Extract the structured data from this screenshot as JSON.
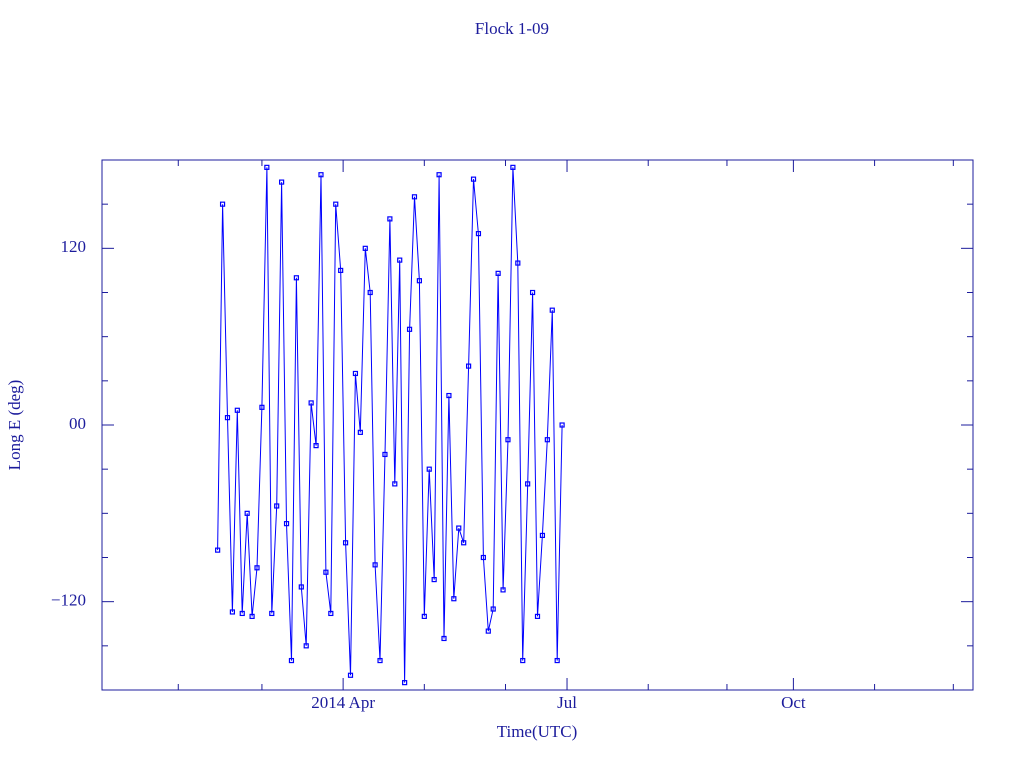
{
  "chart_data": {
    "type": "line",
    "title": "Flock 1-09",
    "x_label": "Time(UTC)",
    "y_label": "Long E (deg)",
    "xlim": [
      -8,
      346
    ],
    "ylim": [
      -180,
      180
    ],
    "xticks": [
      {
        "value": 90,
        "label": "2014 Apr"
      },
      {
        "value": 181,
        "label": "Jul"
      },
      {
        "value": 273,
        "label": "Oct"
      }
    ],
    "xminorticks": [
      23,
      57,
      123,
      156,
      214,
      246,
      306,
      338
    ],
    "yticks": [
      {
        "value": -120,
        "label": "−120"
      },
      {
        "value": 0,
        "label": "00"
      },
      {
        "value": 120,
        "label": "120"
      }
    ],
    "yminorticks": [
      -150,
      -90,
      -60,
      -30,
      30,
      60,
      90,
      150
    ],
    "marker": "square",
    "series": [
      {
        "color": "#0000ff",
        "x": [
          39,
          41,
          43,
          45,
          47,
          49,
          51,
          53,
          55,
          57,
          59,
          61,
          63,
          65,
          67,
          69,
          71,
          73,
          75,
          77,
          79,
          81,
          83,
          85,
          87,
          89,
          91,
          93,
          95,
          97,
          99,
          101,
          103,
          105,
          107,
          109,
          111,
          113,
          115,
          117,
          119,
          121,
          123,
          125,
          127,
          129,
          131,
          133,
          135,
          137,
          139,
          141,
          143,
          145,
          147,
          149,
          151,
          153,
          155,
          157,
          159,
          161,
          163,
          165,
          167,
          169,
          171,
          173,
          175,
          177,
          179
        ],
        "values": [
          -85,
          150,
          5,
          -127,
          10,
          -128,
          -60,
          -130,
          -97,
          12,
          175,
          -128,
          -55,
          165,
          -67,
          -160,
          100,
          -110,
          -150,
          15,
          -14,
          170,
          -100,
          -128,
          150,
          105,
          -80,
          -170,
          35,
          -5,
          120,
          90,
          -95,
          -160,
          -20,
          140,
          -40,
          112,
          -175,
          65,
          155,
          98,
          -130,
          -30,
          -105,
          170,
          -145,
          20,
          -118,
          -70,
          -80,
          40,
          167,
          130,
          -90,
          -140,
          -125,
          103,
          -112,
          -10,
          175,
          110,
          -160,
          -40,
          90,
          -130,
          -75,
          -10,
          78,
          -160,
          0
        ]
      }
    ]
  }
}
